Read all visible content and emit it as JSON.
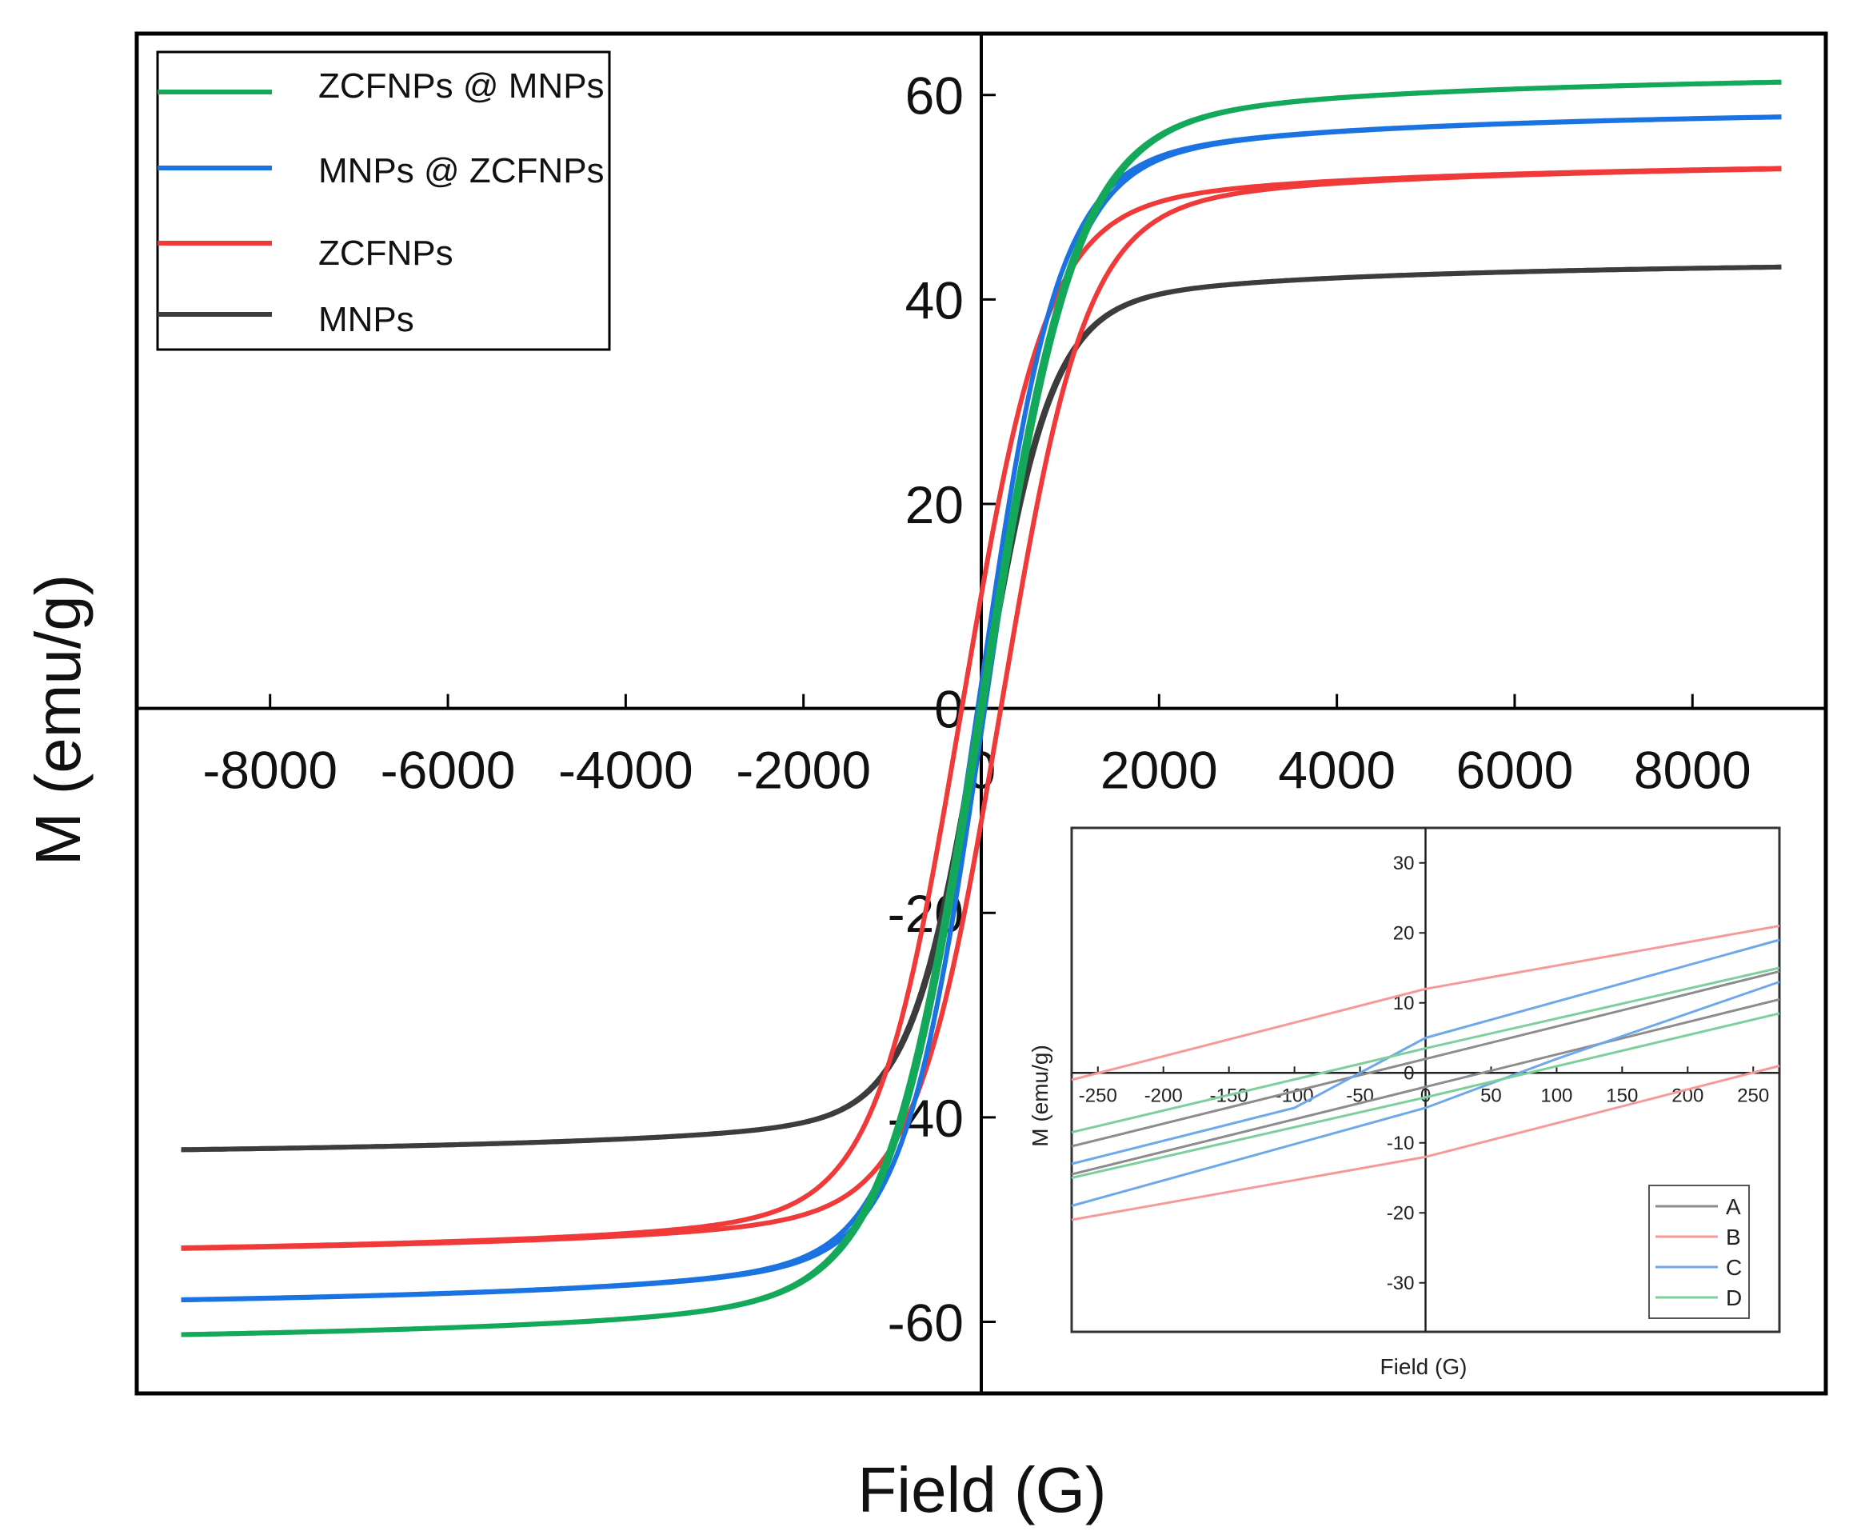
{
  "chart_data": [
    {
      "type": "line",
      "title": "",
      "xlabel": "Field (G)",
      "ylabel": "M (emu/g)",
      "xlim": [
        -9500,
        9500
      ],
      "ylim": [
        -67,
        66
      ],
      "xticks": [
        -8000,
        -6000,
        -4000,
        -2000,
        0,
        2000,
        4000,
        6000,
        8000
      ],
      "yticks": [
        -60,
        -40,
        -20,
        0,
        20,
        40,
        60
      ],
      "xtick_labels": [
        "-8000",
        "-6000",
        "-4000",
        "-2000",
        "0",
        "2000",
        "4000",
        "6000",
        "8000"
      ],
      "ytick_labels": [
        "-60",
        "-40",
        "-20",
        "0",
        "20",
        "40",
        "60"
      ],
      "legend_position": "top-left",
      "series": [
        {
          "name": "ZCFNPs @ MNPs",
          "color": "#13a85a",
          "Ms": 63.0,
          "Hc": 20,
          "a": 1000
        },
        {
          "name": "MNPs @ ZCFNPs",
          "color": "#1a73e0",
          "Ms": 59.5,
          "Hc": 40,
          "a": 850
        },
        {
          "name": "ZCFNPs",
          "color": "#f03a3a",
          "Ms": 54.3,
          "Hc": 220,
          "a": 900
        },
        {
          "name": "MNPs",
          "color": "#3c3c3c",
          "Ms": 44.4,
          "Hc": 10,
          "a": 750
        }
      ]
    },
    {
      "type": "line",
      "title": "",
      "xlabel": "Field (G)",
      "ylabel": "M (emu/g)",
      "xlim": [
        -270,
        270
      ],
      "ylim": [
        -37,
        35
      ],
      "xticks": [
        -250,
        -200,
        -150,
        -100,
        -50,
        0,
        50,
        100,
        150,
        200,
        250
      ],
      "yticks": [
        -30,
        -20,
        -10,
        0,
        10,
        20,
        30
      ],
      "xtick_labels": [
        "-250",
        "-200",
        "-150",
        "-100",
        "-50",
        "0",
        "50",
        "100",
        "150",
        "200",
        "250"
      ],
      "ytick_labels": [
        "-30",
        "-20",
        "-10",
        "0",
        "10",
        "20",
        "30"
      ],
      "legend_position": "bottom-right",
      "series": [
        {
          "name": "A",
          "color": "#8c8c8c",
          "upper": [
            [
              -270,
              -10.5
            ],
            [
              0,
              2.0
            ],
            [
              270,
              14.5
            ]
          ],
          "lower": [
            [
              -270,
              -14.5
            ],
            [
              0,
              -2.0
            ],
            [
              270,
              10.5
            ]
          ]
        },
        {
          "name": "B",
          "color": "#f59a9a",
          "upper": [
            [
              -270,
              -1.0
            ],
            [
              0,
              12.0
            ],
            [
              270,
              21.0
            ]
          ],
          "lower": [
            [
              -270,
              -21.0
            ],
            [
              0,
              -12.0
            ],
            [
              270,
              1.0
            ]
          ]
        },
        {
          "name": "C",
          "color": "#6fa8ea",
          "upper": [
            [
              -270,
              -13.0
            ],
            [
              -100,
              -5.0
            ],
            [
              0,
              5.0
            ],
            [
              270,
              19.0
            ]
          ],
          "lower": [
            [
              -270,
              -19.0
            ],
            [
              0,
              -5.0
            ],
            [
              100,
              2.0
            ],
            [
              270,
              13.0
            ]
          ]
        },
        {
          "name": "D",
          "color": "#7ecf9a",
          "upper": [
            [
              -270,
              -8.5
            ],
            [
              0,
              3.5
            ],
            [
              270,
              15.0
            ]
          ],
          "lower": [
            [
              -270,
              -15.0
            ],
            [
              0,
              -3.5
            ],
            [
              270,
              8.5
            ]
          ]
        }
      ]
    }
  ]
}
